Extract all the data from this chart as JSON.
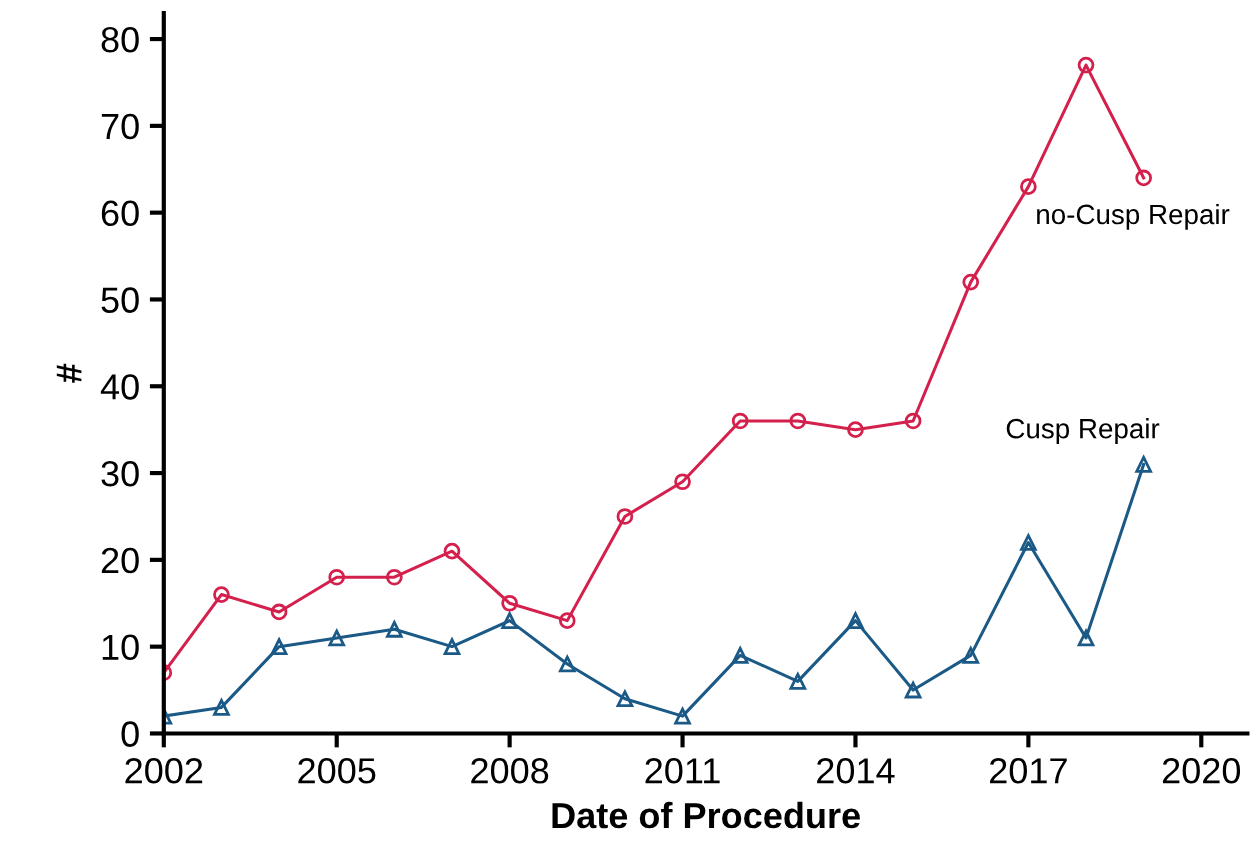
{
  "chart_data": {
    "type": "line",
    "xlabel": "Date of Procedure",
    "ylabel": "#",
    "x": [
      2002,
      2003,
      2004,
      2005,
      2006,
      2007,
      2008,
      2009,
      2010,
      2011,
      2012,
      2013,
      2014,
      2015,
      2016,
      2017,
      2018,
      2019
    ],
    "series": [
      {
        "name": "no-Cusp Repair",
        "color": "#d4204c",
        "marker": "circle",
        "values": [
          7,
          16,
          14,
          18,
          18,
          21,
          15,
          13,
          25,
          29,
          36,
          36,
          35,
          36,
          52,
          63,
          77,
          64
        ]
      },
      {
        "name": "Cusp Repair",
        "color": "#1b5a86",
        "marker": "triangle",
        "values": [
          2,
          3,
          10,
          11,
          12,
          10,
          13,
          8,
          4,
          2,
          9,
          6,
          13,
          5,
          9,
          22,
          11,
          31
        ]
      }
    ],
    "xlim": [
      2002,
      2020.8
    ],
    "xticks": [
      2002,
      2005,
      2008,
      2011,
      2014,
      2017,
      2020
    ],
    "ylim": [
      0,
      83
    ],
    "yticks": [
      0,
      10,
      20,
      30,
      40,
      50,
      60,
      70,
      80
    ],
    "grid": false,
    "legend": false,
    "line_style": "solid"
  }
}
